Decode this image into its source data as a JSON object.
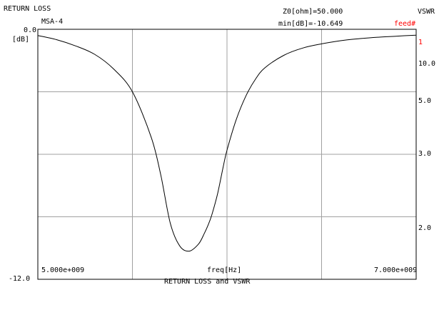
{
  "header": {
    "chart_name": "RETURN LOSS",
    "model": "MSA-4",
    "z0": "Z0[ohm]=50.000",
    "min_db": "min[dB]=-10.649",
    "vswr_label": "VSWR",
    "feed_label": "feed#",
    "feed_number": "1"
  },
  "colors": {
    "curve": "#000000",
    "grid": "#a0a0a0",
    "frame": "#000000",
    "feed": "#ff0000"
  },
  "chart_data": {
    "type": "line",
    "title": "RETURN LOSS and VSWR",
    "xlabel": "freq[Hz]",
    "ylabel": "[dB]",
    "xlim": [
      5000000000.0,
      7000000000.0
    ],
    "ylim": [
      -12.0,
      0.0
    ],
    "x_tick_labels": [
      "5.000e+009",
      "7.000e+009"
    ],
    "y_tick_labels": [
      "0.0",
      "-12.0"
    ],
    "grid": true,
    "vswr_axis": [
      {
        "label": "1",
        "vswr": 1.0
      },
      {
        "label": "10.0",
        "vswr": 10.0
      },
      {
        "label": "5.0",
        "vswr": 5.0
      },
      {
        "label": "3.0",
        "vswr": 3.0
      },
      {
        "label": "2.0",
        "vswr": 2.0
      }
    ],
    "series": [
      {
        "x": [
          5000000000.0,
          5100000000.0,
          5200000000.0,
          5300000000.0,
          5400000000.0,
          5500000000.0,
          5600000000.0,
          5650000000.0,
          5700000000.0,
          5750000000.0,
          5800000000.0,
          5850000000.0,
          5880000000.0,
          5900000000.0,
          5920000000.0,
          5950000000.0,
          5980000000.0,
          6000000000.0,
          6050000000.0,
          6100000000.0,
          6150000000.0,
          6200000000.0,
          6300000000.0,
          6400000000.0,
          6500000000.0,
          6600000000.0,
          6700000000.0,
          6800000000.0,
          6900000000.0,
          7000000000.0
        ],
        "y": [
          -0.3,
          -0.5,
          -0.8,
          -1.2,
          -1.9,
          -3.0,
          -5.2,
          -7.0,
          -9.3,
          -10.4,
          -10.65,
          -10.3,
          -9.8,
          -9.4,
          -8.9,
          -7.9,
          -6.6,
          -5.8,
          -4.3,
          -3.2,
          -2.4,
          -1.85,
          -1.25,
          -0.9,
          -0.7,
          -0.55,
          -0.45,
          -0.38,
          -0.33,
          -0.28
        ]
      }
    ]
  }
}
